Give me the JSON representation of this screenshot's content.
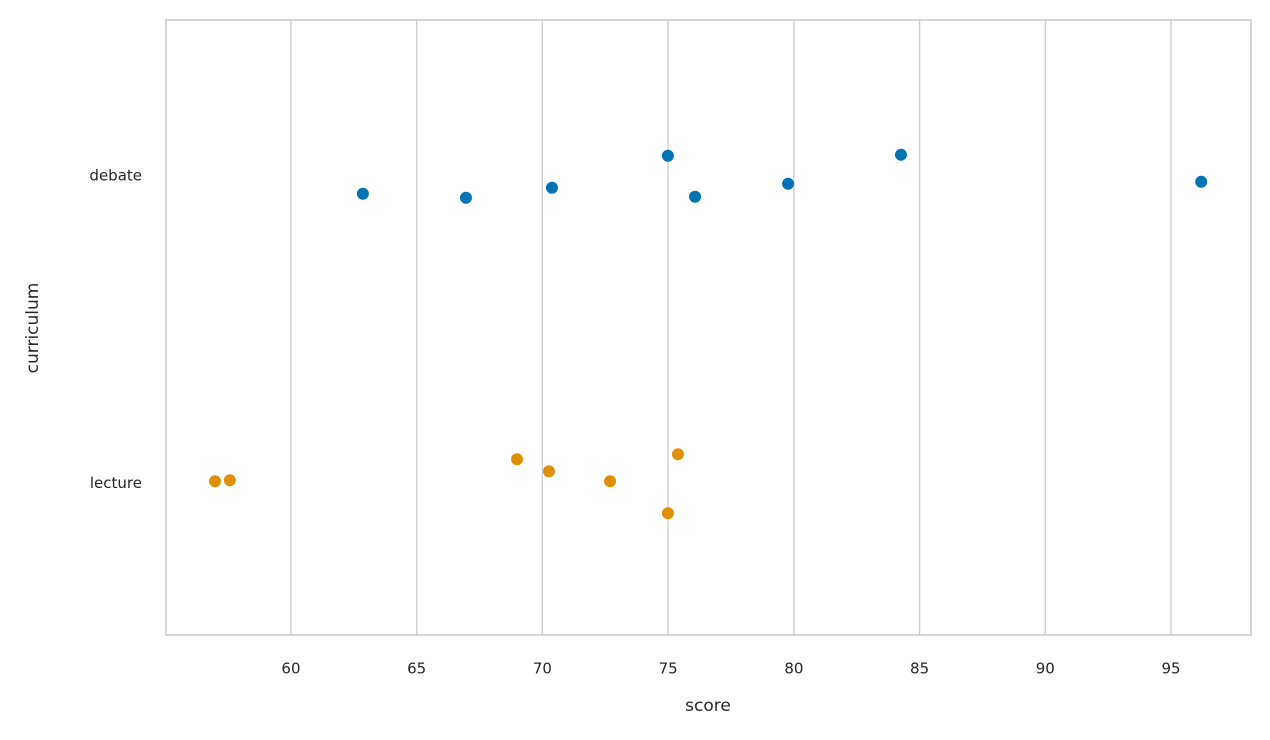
{
  "chart_data": {
    "type": "strip",
    "x_label": "score",
    "y_label": "curriculum",
    "categories": [
      "debate",
      "lecture"
    ],
    "colors": [
      "#0173b2",
      "#de8f05"
    ],
    "values": [
      [
        62.86,
        66.96,
        70.38,
        74.99,
        76.07,
        79.77,
        84.26,
        96.2
      ],
      [
        56.98,
        57.57,
        68.99,
        70.26,
        72.69,
        74.99,
        75.39
      ]
    ],
    "xlim": [
      55.03,
      98.18
    ],
    "xticks": [
      60,
      65,
      70,
      75,
      80,
      85,
      90,
      95
    ],
    "grid": true
  }
}
